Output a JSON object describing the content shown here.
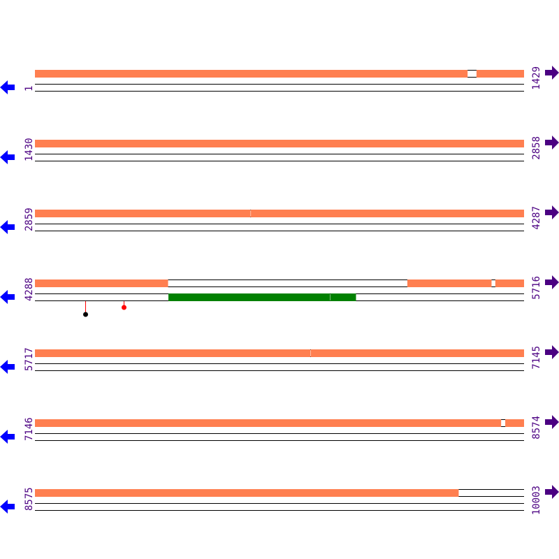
{
  "colors": {
    "coverage": "#ff7f50",
    "feature": "#008000",
    "left_arrow": "#0000ff",
    "right_arrow": "#4b0082",
    "label": "#4b0082",
    "line": "#000000"
  },
  "icons": {
    "left": "arrow-left-icon",
    "right": "arrow-right-icon"
  },
  "rows": [
    {
      "start": 1,
      "end": 1429,
      "start_label": "1",
      "end_label": "1429",
      "coverage": [
        [
          1,
          1264
        ],
        [
          1291,
          1429
        ]
      ],
      "features": [],
      "markers": []
    },
    {
      "start": 1430,
      "end": 2858,
      "start_label": "1430",
      "end_label": "2858",
      "coverage": [
        [
          1430,
          2858
        ]
      ],
      "features": [],
      "markers": []
    },
    {
      "start": 2859,
      "end": 4287,
      "start_label": "2859",
      "end_label": "4287",
      "coverage": [
        [
          2859,
          3488
        ],
        [
          3490,
          4287
        ]
      ],
      "features": [],
      "markers": []
    },
    {
      "start": 4288,
      "end": 5716,
      "start_label": "4288",
      "end_label": "5716",
      "coverage": [
        [
          4288,
          4676
        ],
        [
          5376,
          5621
        ],
        [
          5633,
          5716
        ]
      ],
      "features": [
        [
          4678,
          5149
        ],
        [
          5151,
          5225
        ]
      ],
      "markers": [
        {
          "pos": 4435,
          "color": "#000000",
          "level": 2
        },
        {
          "pos": 4547,
          "color": "#ff0000",
          "level": 1
        }
      ]
    },
    {
      "start": 5717,
      "end": 7145,
      "start_label": "5717",
      "end_label": "7145",
      "coverage": [
        [
          5717,
          6521
        ],
        [
          6523,
          7145
        ]
      ],
      "features": [],
      "markers": []
    },
    {
      "start": 7146,
      "end": 8574,
      "start_label": "7146",
      "end_label": "8574",
      "coverage": [
        [
          7146,
          8507
        ],
        [
          8520,
          8574
        ]
      ],
      "features": [],
      "markers": []
    },
    {
      "start": 8575,
      "end": 10003,
      "start_label": "8575",
      "end_label": "10003",
      "coverage": [
        [
          8575,
          9812
        ]
      ],
      "features": [],
      "markers": []
    }
  ]
}
